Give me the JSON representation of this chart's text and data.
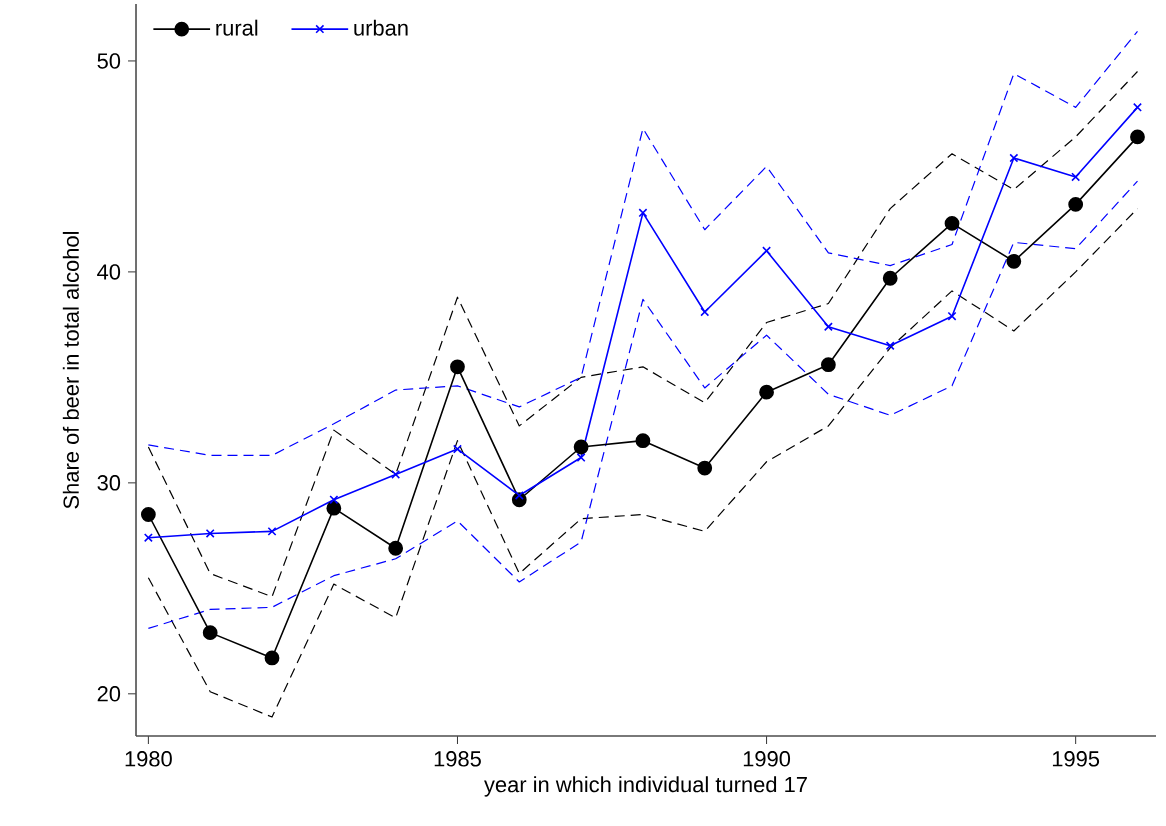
{
  "chart_data": {
    "type": "line",
    "xlabel": "year in which individual turned 17",
    "ylabel": "Share of beer in total alcohol",
    "x": [
      1980,
      1981,
      1982,
      1983,
      1984,
      1985,
      1986,
      1987,
      1988,
      1989,
      1990,
      1991,
      1992,
      1993,
      1994,
      1995,
      1996
    ],
    "series": [
      {
        "name": "rural",
        "color": "#000000",
        "marker": "circle",
        "line_style": "solid",
        "values": [
          28.5,
          22.9,
          21.7,
          28.8,
          26.9,
          35.5,
          29.2,
          31.7,
          32.0,
          30.7,
          34.3,
          35.6,
          39.7,
          42.3,
          40.5,
          43.2,
          46.4
        ]
      },
      {
        "name": "urban",
        "color": "#0000ff",
        "marker": "cross",
        "line_style": "solid",
        "values": [
          27.4,
          27.6,
          27.7,
          29.2,
          30.4,
          31.6,
          29.4,
          31.2,
          42.8,
          38.1,
          41.0,
          37.4,
          36.5,
          37.9,
          45.4,
          44.5,
          47.8
        ]
      },
      {
        "color": "#000000",
        "marker": "none",
        "line_style": "dashed",
        "values": [
          25.5,
          20.1,
          18.9,
          25.2,
          23.6,
          32.0,
          25.7,
          28.3,
          28.5,
          27.7,
          31.0,
          32.7,
          36.4,
          39.1,
          37.2,
          40.0,
          43.0
        ]
      },
      {
        "color": "#000000",
        "marker": "none",
        "line_style": "dashed",
        "values": [
          31.7,
          25.7,
          24.6,
          32.5,
          30.4,
          38.8,
          32.7,
          35.0,
          35.5,
          33.8,
          37.6,
          38.5,
          43.0,
          45.6,
          43.9,
          46.4,
          49.5
        ]
      },
      {
        "color": "#0000ff",
        "marker": "none",
        "line_style": "dashed",
        "values": [
          23.1,
          24.0,
          24.1,
          25.6,
          26.4,
          28.2,
          25.3,
          27.2,
          38.7,
          34.5,
          37.0,
          34.2,
          33.2,
          34.6,
          41.4,
          41.1,
          44.3
        ]
      },
      {
        "color": "#0000ff",
        "marker": "none",
        "line_style": "dashed",
        "values": [
          31.8,
          31.3,
          31.3,
          32.8,
          34.4,
          34.6,
          33.6,
          35.0,
          46.8,
          42.0,
          45.0,
          40.9,
          40.3,
          41.3,
          49.4,
          47.8,
          51.4
        ]
      }
    ],
    "xlim": [
      1979.8,
      1996.3
    ],
    "ylim": [
      18,
      52.7
    ],
    "xticks": [
      1980,
      1985,
      1990,
      1995
    ],
    "yticks": [
      20,
      30,
      40,
      50
    ],
    "grid": false,
    "legend": "top left"
  }
}
